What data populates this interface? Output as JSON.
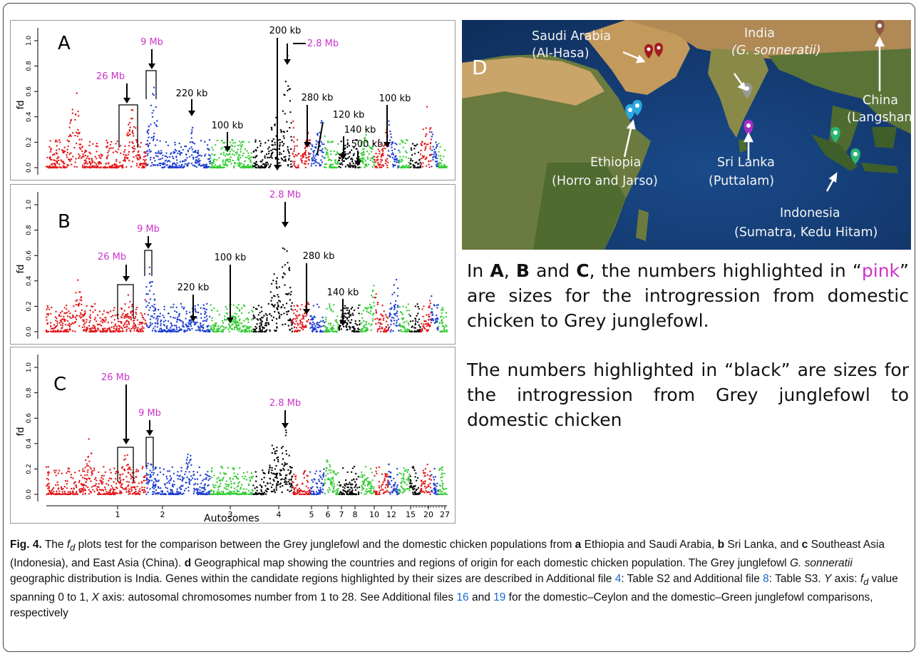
{
  "figure": {
    "panels": [
      {
        "letter": "A",
        "y_label": "fd",
        "y_ticks": [
          "0.0",
          "0.2",
          "0.4",
          "0.6",
          "0.8",
          "1.0"
        ],
        "annotations": [
          {
            "text": "26 Mb",
            "color": "pink"
          },
          {
            "text": "9 Mb",
            "color": "pink"
          },
          {
            "text": "220 kb",
            "color": "black"
          },
          {
            "text": "100 kb",
            "color": "black"
          },
          {
            "text": "200 kb",
            "color": "black"
          },
          {
            "text": "2.8 Mb",
            "color": "pink"
          },
          {
            "text": "280 kb",
            "color": "black"
          },
          {
            "text": "120 kb",
            "color": "black"
          },
          {
            "text": "140 kb",
            "color": "black"
          },
          {
            "text": "500 kb",
            "color": "black"
          },
          {
            "text": "100 kb",
            "color": "black"
          }
        ]
      },
      {
        "letter": "B",
        "y_label": "fd",
        "y_ticks": [
          "0.0",
          "0.2",
          "0.4",
          "0.6",
          "0.8",
          "1.0"
        ],
        "annotations": [
          {
            "text": "2.8 Mb",
            "color": "pink"
          },
          {
            "text": "9 Mb",
            "color": "pink"
          },
          {
            "text": "26 Mb",
            "color": "pink"
          },
          {
            "text": "100 kb",
            "color": "black"
          },
          {
            "text": "280 kb",
            "color": "black"
          },
          {
            "text": "220 kb",
            "color": "black"
          },
          {
            "text": "140 kb",
            "color": "black"
          }
        ]
      },
      {
        "letter": "C",
        "y_label": "fd",
        "y_ticks": [
          "0.0",
          "0.2",
          "0.4",
          "0.6",
          "0.8",
          "1.0"
        ],
        "x_label": "Autosomes",
        "x_ticks": [
          "1",
          "2",
          "3",
          "4",
          "5",
          "6",
          "7",
          "8",
          "10",
          "12",
          "15",
          "20",
          "27"
        ],
        "annotations": [
          {
            "text": "26 Mb",
            "color": "pink"
          },
          {
            "text": "9 Mb",
            "color": "pink"
          },
          {
            "text": "2.8 Mb",
            "color": "pink"
          }
        ]
      }
    ],
    "map": {
      "letter": "D",
      "labels": [
        {
          "text": "Saudi Arabia\n(Al-Hasa)"
        },
        {
          "text": "India\n(G. sonneratii)"
        },
        {
          "text": "China\n(Langshan)"
        },
        {
          "text": "Ethiopia\n(Horro and Jarso)"
        },
        {
          "text": "Sri Lanka\n(Puttalam)"
        },
        {
          "text": "Indonesia\n(Sumatra, Kedu Hitam)"
        }
      ],
      "marker_colors": {
        "saudi": "#a11d1d",
        "india": "#9a9a9a",
        "china": "#8b5a44",
        "ethiopia": "#2aa8e0",
        "srilanka": "#a32ec4",
        "indonesia": "#2bb673"
      }
    },
    "legend": {
      "p1_a": "In ",
      "p1_A": "A",
      "p1_b": ", ",
      "p1_B": "B",
      "p1_c": " and ",
      "p1_C": "C",
      "p1_d": ", the numbers highlighted in “",
      "p1_pink": "pink",
      "p1_e": "” are sizes for the introgression from domestic chicken to Grey junglefowl.",
      "p2": "The numbers highlighted in “black” are sizes for the introgression from Grey junglefowl to domestic chicken"
    },
    "caption": {
      "fig": "Fig. 4.",
      "t1": " The ",
      "fd_f": "f",
      "fd_d": "d",
      "t2": " plots test for the comparison between the Grey junglefowl and the domestic chicken populations from ",
      "a": "a",
      "t3": " Ethiopia and Saudi Arabia, ",
      "b": "b",
      "t4": " Sri Lanka, and ",
      "c": "c",
      "t5": " Southeast Asia (Indonesia), and East Asia (China). ",
      "d": "d",
      "t6": " Geographical map showing the countries and regions of origin for each domestic chicken population. The Grey junglefowl ",
      "gs": "G. sonneratii",
      "t7": " geographic distribution is India. Genes within the candidate regions highlighted by their sizes are described in Additional file ",
      "f4": "4",
      "t8": ": Table S2 and Additional file ",
      "f8": "8",
      "t9": ": Table S3. ",
      "Y": "Y",
      "t10": " axis: ",
      "t11": " value spanning 0 to 1, ",
      "X": "X",
      "t12": " axis: autosomal chromosomes number from 1 to 28. See Additional files ",
      "f16": "16",
      "t13": " and ",
      "f19": "19",
      "t14": " for the domestic–Ceylon and the domestic–Green junglefowl comparisons, respectively"
    }
  }
}
